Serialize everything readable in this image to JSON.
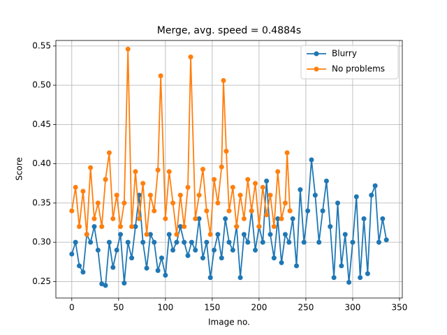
{
  "chart_data": {
    "type": "line",
    "title": "Merge, avg. speed = 0.4884s",
    "xlabel": "Image no.",
    "ylabel": "Score",
    "xlim": [
      -17,
      353
    ],
    "ylim": [
      0.229,
      0.557
    ],
    "xticks": [
      0,
      50,
      100,
      150,
      200,
      250,
      300,
      350
    ],
    "yticks": [
      0.25,
      {
        "value": 0.3,
        "label": "0.30"
      },
      0.35,
      {
        "value": 0.4,
        "label": "0.40"
      },
      0.45,
      {
        "value": 0.5,
        "label": "0.50"
      },
      0.55
    ],
    "grid": true,
    "legend": "upper right",
    "series": [
      {
        "name": "Blurry",
        "color": "#1f77b4",
        "x": [
          0,
          4,
          8,
          12,
          16,
          20,
          24,
          28,
          32,
          36,
          40,
          44,
          48,
          52,
          56,
          60,
          64,
          68,
          72,
          76,
          80,
          84,
          88,
          92,
          96,
          100,
          104,
          108,
          112,
          116,
          120,
          124,
          128,
          132,
          136,
          140,
          144,
          148,
          152,
          156,
          160,
          164,
          168,
          172,
          176,
          180,
          184,
          188,
          192,
          196,
          200,
          204,
          208,
          212,
          216,
          220,
          224,
          228,
          232,
          236,
          240,
          244,
          248,
          252,
          256,
          260,
          264,
          268,
          272,
          276,
          280,
          284,
          288,
          292,
          296,
          300,
          304,
          308,
          312,
          316,
          320,
          324,
          328,
          332,
          336
        ],
        "values": [
          0.285,
          0.3,
          0.27,
          0.262,
          0.31,
          0.3,
          0.32,
          0.29,
          0.247,
          0.245,
          0.3,
          0.268,
          0.29,
          0.31,
          0.248,
          0.3,
          0.28,
          0.32,
          0.36,
          0.3,
          0.267,
          0.31,
          0.3,
          0.264,
          0.28,
          0.258,
          0.31,
          0.29,
          0.3,
          0.32,
          0.3,
          0.283,
          0.3,
          0.29,
          0.33,
          0.28,
          0.3,
          0.255,
          0.29,
          0.31,
          0.28,
          0.33,
          0.3,
          0.29,
          0.32,
          0.255,
          0.31,
          0.3,
          0.34,
          0.29,
          0.32,
          0.3,
          0.378,
          0.31,
          0.28,
          0.33,
          0.274,
          0.31,
          0.3,
          0.33,
          0.27,
          0.367,
          0.3,
          0.34,
          0.405,
          0.36,
          0.3,
          0.34,
          0.378,
          0.32,
          0.255,
          0.35,
          0.27,
          0.31,
          0.249,
          0.3,
          0.358,
          0.255,
          0.33,
          0.26,
          0.36,
          0.372,
          0.3,
          0.33,
          0.303
        ]
      },
      {
        "name": "No problems",
        "color": "#ff7f0e",
        "x": [
          0,
          4,
          8,
          12,
          16,
          20,
          24,
          28,
          32,
          36,
          40,
          44,
          48,
          52,
          56,
          60,
          64,
          68,
          72,
          76,
          80,
          84,
          88,
          92,
          95,
          100,
          104,
          108,
          112,
          116,
          120,
          124,
          127,
          132,
          136,
          140,
          144,
          148,
          152,
          156,
          160,
          162,
          165,
          168,
          172,
          176,
          180,
          184,
          188,
          192,
          196,
          200,
          204,
          208,
          212,
          216,
          220,
          224,
          228,
          230,
          233
        ],
        "values": [
          0.34,
          0.37,
          0.32,
          0.365,
          0.31,
          0.395,
          0.33,
          0.35,
          0.32,
          0.38,
          0.414,
          0.33,
          0.36,
          0.32,
          0.35,
          0.546,
          0.32,
          0.39,
          0.33,
          0.375,
          0.31,
          0.36,
          0.34,
          0.392,
          0.512,
          0.33,
          0.39,
          0.35,
          0.31,
          0.36,
          0.32,
          0.37,
          0.536,
          0.33,
          0.36,
          0.393,
          0.34,
          0.31,
          0.38,
          0.35,
          0.396,
          0.506,
          0.416,
          0.34,
          0.37,
          0.32,
          0.36,
          0.33,
          0.38,
          0.34,
          0.375,
          0.32,
          0.37,
          0.335,
          0.36,
          0.32,
          0.39,
          0.33,
          0.35,
          0.414,
          0.34
        ]
      }
    ]
  }
}
